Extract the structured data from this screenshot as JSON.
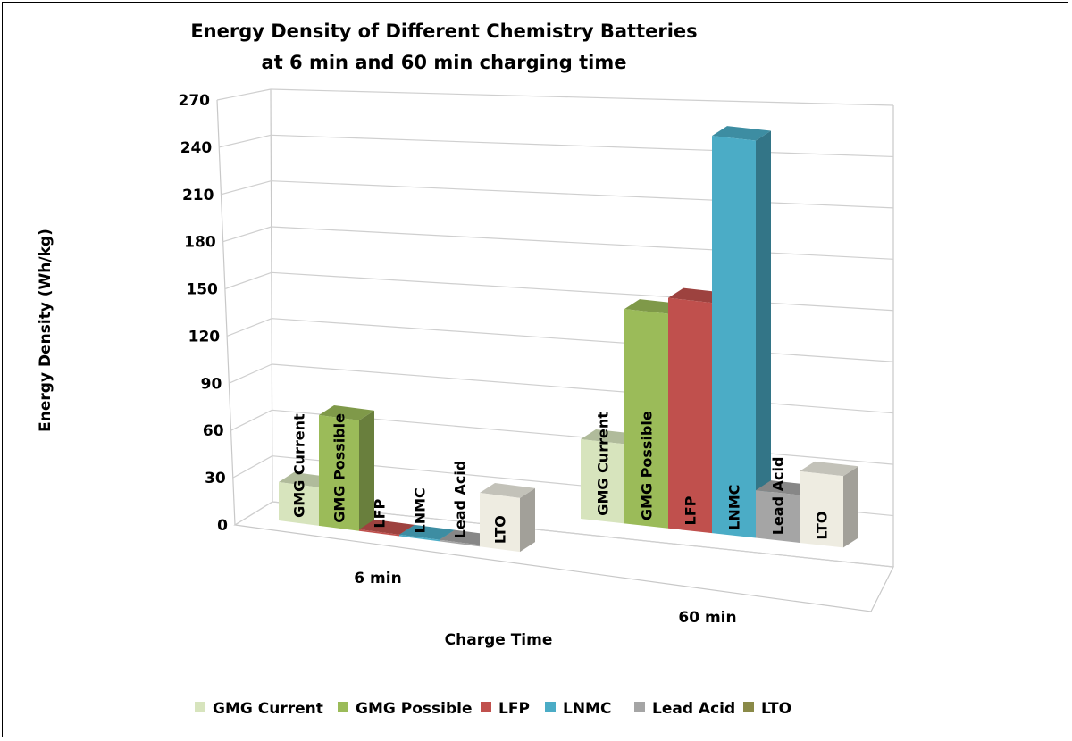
{
  "chart_data": {
    "type": "bar",
    "style": "3d-clustered-column",
    "title": [
      "Energy Density of Different Chemistry Batteries",
      "at 6 min and 60 min charging time"
    ],
    "xlabel": "Charge Time",
    "ylabel": "Energy Density (Wh/kg)",
    "ylim": [
      0,
      270
    ],
    "yticks": [
      "0",
      "30",
      "60",
      "90",
      "120",
      "150",
      "180",
      "210",
      "240",
      "270"
    ],
    "grid": true,
    "legend_position": "bottom",
    "categories": [
      "6 min",
      "60 min"
    ],
    "series": [
      {
        "name": "GMG Current",
        "values": [
          25,
          50
        ],
        "color": "#d7e4bd",
        "legend_color": "#d7e4bd"
      },
      {
        "name": "GMG Possible",
        "values": [
          72,
          135
        ],
        "color": "#9bbb59",
        "legend_color": "#9bbb59"
      },
      {
        "name": "LFP",
        "values": [
          1,
          145
        ],
        "color": "#c0504d",
        "legend_color": "#c0504d"
      },
      {
        "name": "LNMC",
        "values": [
          1,
          250
        ],
        "color": "#4bacc6",
        "legend_color": "#4bacc6"
      },
      {
        "name": "Lead Acid",
        "values": [
          1,
          30
        ],
        "color": "#a5a5a5",
        "legend_color": "#a5a5a5"
      },
      {
        "name": "LTO",
        "values": [
          35,
          45
        ],
        "color": "#eeece1",
        "legend_color": "#8a8a48"
      }
    ]
  }
}
